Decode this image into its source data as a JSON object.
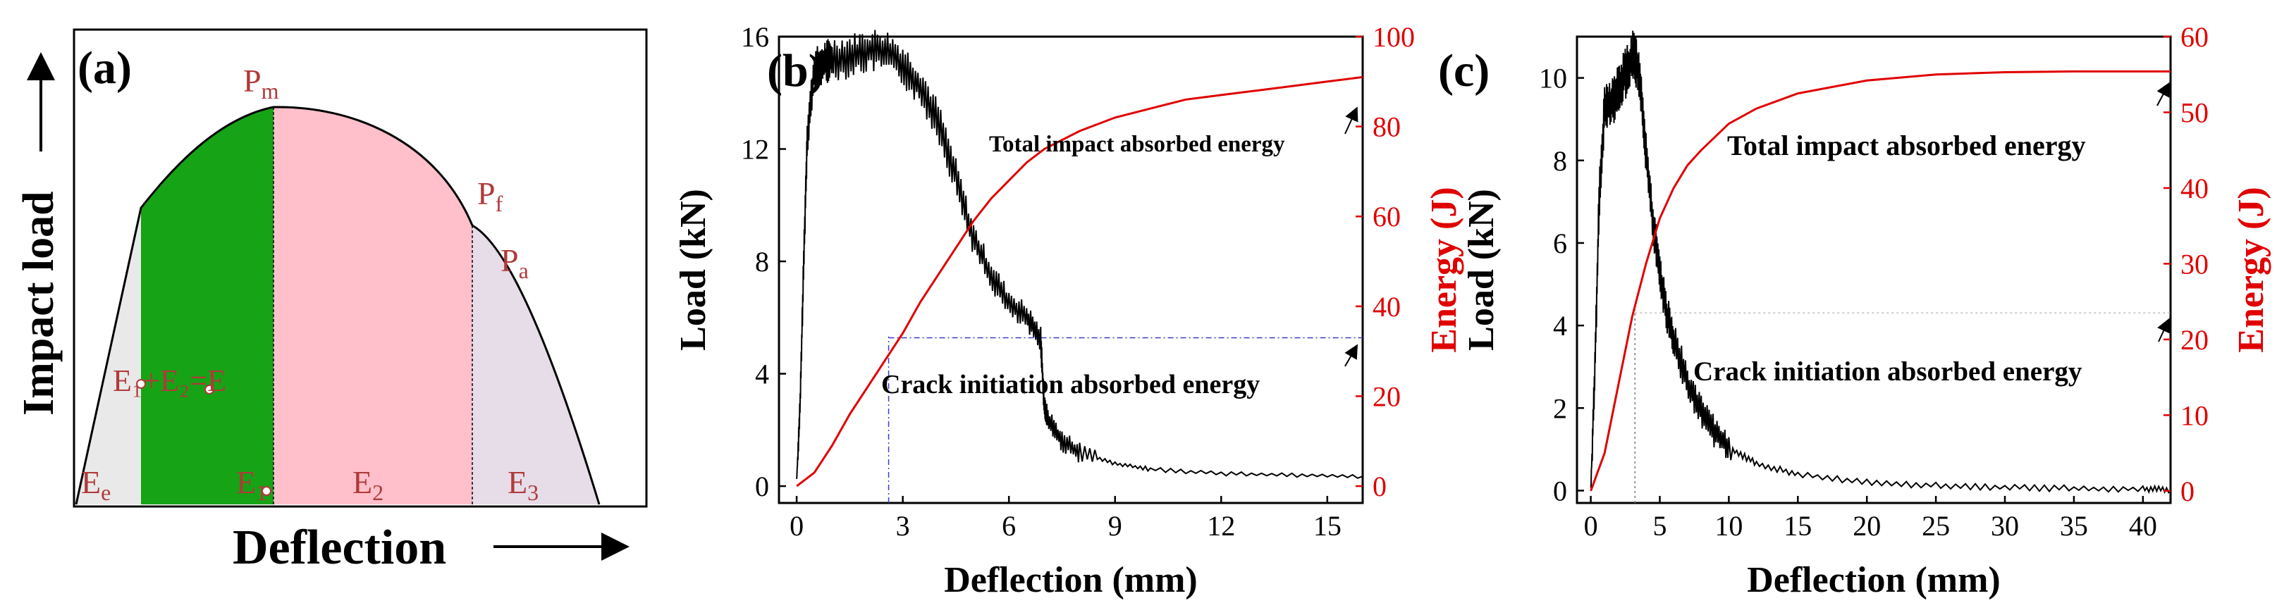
{
  "panel_a": {
    "label": "(a)",
    "ylabel": "Impact load",
    "xlabel": "Deflection",
    "p_m": "P",
    "p_m_sub": "m",
    "p_f": "P",
    "p_f_sub": "f",
    "p_a": "P",
    "p_a_sub": "a",
    "e_sum": "E₁+E₂=E",
    "e_e": "E",
    "e_e_sub": "e",
    "e_1": "E",
    "e_1_sub": "1",
    "e_2": "E",
    "e_2_sub": "2",
    "e_3": "E",
    "e_3_sub": "3",
    "colors": {
      "green": "#16a316",
      "pink": "#ffc0cb",
      "lavender": "#e6dde9",
      "grey": "#e9e9e9"
    }
  },
  "chart_data": [
    {
      "type": "line",
      "panel": "(b)",
      "xlabel": "Deflection (mm)",
      "ylabel": "Load (kN)",
      "y2label": "Energy (J)",
      "xlim": [
        -0.5,
        16
      ],
      "ylim": [
        -0.6,
        16
      ],
      "y2lim": [
        -3.75,
        100
      ],
      "xticks": [
        "0",
        "3",
        "6",
        "9",
        "12",
        "15"
      ],
      "yticks": [
        "0",
        "4",
        "8",
        "12",
        "16"
      ],
      "y2ticks": [
        "0",
        "20",
        "40",
        "60",
        "80",
        "100"
      ],
      "series": [
        {
          "name": "Load",
          "axis": "left",
          "color": "#000000",
          "x": [
            0,
            0.1,
            0.2,
            0.3,
            0.5,
            0.8,
            1.0,
            1.5,
            2.0,
            2.5,
            3.0,
            3.5,
            4.0,
            4.5,
            5.0,
            5.5,
            6.0,
            6.5,
            6.9,
            7.0,
            7.1,
            7.5,
            8.0,
            9.0,
            10.0,
            12.0,
            14.0,
            16.0
          ],
          "y": [
            0.2,
            3.0,
            8.0,
            12.5,
            14.8,
            15.1,
            15.2,
            15.3,
            15.5,
            15.5,
            15.0,
            14.2,
            13.0,
            11.0,
            8.8,
            7.5,
            6.5,
            6.0,
            5.2,
            2.8,
            2.4,
            1.6,
            1.2,
            0.8,
            0.6,
            0.45,
            0.4,
            0.35
          ]
        },
        {
          "name": "Energy",
          "axis": "right",
          "color": "#e00000",
          "x": [
            0,
            0.5,
            1.0,
            1.5,
            2.0,
            2.5,
            3.0,
            3.5,
            4.0,
            4.5,
            5.0,
            5.5,
            6.0,
            6.5,
            7.0,
            8.0,
            9.0,
            10.0,
            11.0,
            12.0,
            13.0,
            14.0,
            15.0,
            16.0
          ],
          "y": [
            0,
            3,
            9,
            16,
            22,
            28,
            34,
            41,
            47,
            53,
            59,
            64,
            68,
            72,
            75,
            79,
            82,
            84,
            86,
            87,
            88,
            89,
            90,
            91
          ]
        }
      ],
      "reference": {
        "crack_x": 2.6,
        "crack_load": 5.2,
        "crack_energy": 33
      },
      "annotations": [
        "Total impact absorbed energy",
        "Crack initiation absorbed energy"
      ]
    },
    {
      "type": "line",
      "panel": "(c)",
      "xlabel": "Deflection (mm)",
      "ylabel": "Load (kN)",
      "y2label": "Energy (J)",
      "xlim": [
        -1,
        42
      ],
      "ylim": [
        -0.3,
        11
      ],
      "y2lim": [
        -1.6,
        60
      ],
      "xticks": [
        "0",
        "5",
        "10",
        "15",
        "20",
        "25",
        "30",
        "35",
        "40"
      ],
      "yticks": [
        "0",
        "2",
        "4",
        "6",
        "8",
        "10"
      ],
      "y2ticks": [
        "0",
        "10",
        "20",
        "30",
        "40",
        "50",
        "60"
      ],
      "series": [
        {
          "name": "Load",
          "axis": "left",
          "color": "#000000",
          "x": [
            0,
            0.3,
            0.6,
            1.0,
            1.5,
            2.0,
            2.5,
            3.0,
            3.3,
            3.6,
            4.0,
            4.5,
            5.0,
            5.5,
            6.0,
            7.0,
            8.0,
            9.0,
            10.0,
            12.0,
            15.0,
            20.0,
            25.0,
            30.0,
            35.0,
            40.0,
            42.0
          ],
          "y": [
            0,
            3.0,
            7.0,
            9.2,
            9.4,
            9.7,
            10.1,
            10.5,
            10.4,
            9.8,
            8.2,
            6.5,
            5.2,
            4.3,
            3.7,
            2.6,
            1.9,
            1.4,
            1.05,
            0.65,
            0.4,
            0.2,
            0.12,
            0.08,
            0.05,
            0.04,
            0.03
          ]
        },
        {
          "name": "Energy",
          "axis": "right",
          "color": "#e00000",
          "x": [
            0,
            1,
            2,
            3,
            4,
            5,
            6,
            7,
            8,
            10,
            12,
            15,
            20,
            25,
            30,
            35,
            40,
            42
          ],
          "y": [
            0,
            5,
            14,
            23,
            30,
            36,
            40,
            43,
            45,
            48.5,
            50.5,
            52.5,
            54.2,
            55,
            55.3,
            55.4,
            55.4,
            55.4
          ]
        }
      ],
      "reference": {
        "crack_x": 3.2,
        "crack_load": 4.3,
        "crack_energy": 23.5
      },
      "annotations": [
        "Total impact absorbed energy",
        "Crack initiation absorbed energy"
      ]
    }
  ]
}
